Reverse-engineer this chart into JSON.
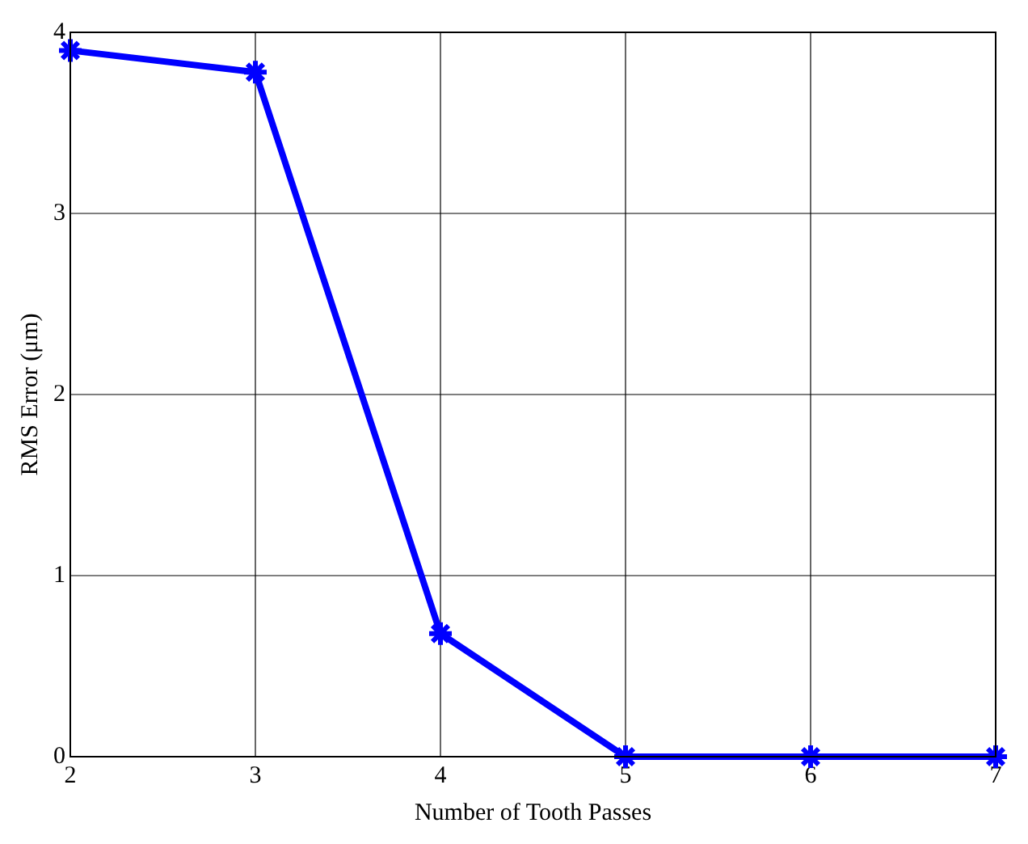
{
  "chart_data": {
    "type": "line",
    "xlabel": "Number of Tooth Passes",
    "ylabel": "RMS Error (μm)",
    "x": [
      2,
      3,
      4,
      5,
      6,
      7
    ],
    "series": [
      {
        "color": "#0000ff",
        "values": [
          3.9,
          3.78,
          0.68,
          0,
          0,
          0
        ]
      }
    ],
    "xlim": [
      2,
      7
    ],
    "xticks": [
      2,
      3,
      4,
      5,
      6,
      7
    ],
    "ylim": [
      0,
      4
    ],
    "yticks": [
      0,
      1,
      2,
      3,
      4
    ],
    "grid": true,
    "marker": "cross",
    "line_style": "solid",
    "legend": false
  }
}
